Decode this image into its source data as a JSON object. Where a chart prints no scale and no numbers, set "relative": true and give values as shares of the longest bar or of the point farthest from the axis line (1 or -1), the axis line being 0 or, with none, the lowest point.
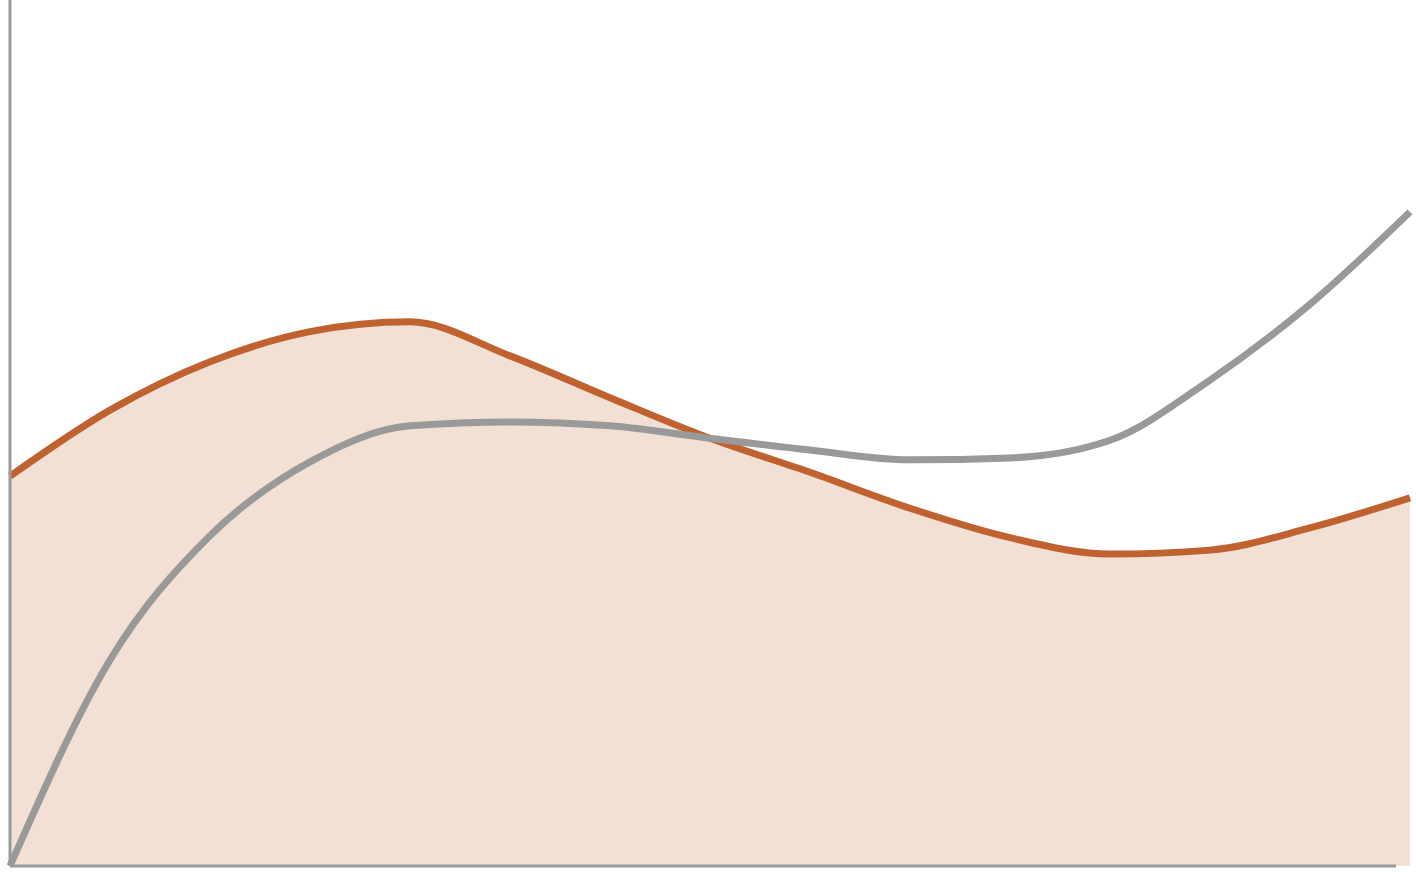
{
  "chart_data": {
    "type": "area",
    "relative": true,
    "categories": [
      null,
      null,
      null,
      null,
      null,
      null,
      null,
      null,
      null,
      null,
      null,
      null,
      null,
      null,
      null
    ],
    "series": [
      {
        "color": "#c0622f",
        "values": [
          0.596,
          0.697,
          0.771,
          0.817,
          0.832,
          0.78,
          0.716,
          0.654,
          0.602,
          0.547,
          0.502,
          0.477,
          0.483,
          0.517,
          0.563
        ]
      },
      {
        "type": "line",
        "color": "#999999",
        "values": [
          0,
          0.315,
          0.505,
          0.618,
          0.673,
          0.679,
          0.673,
          0.654,
          0.636,
          0.621,
          0.624,
          0.651,
          0.743,
          0.859,
          1
        ]
      }
    ]
  }
}
